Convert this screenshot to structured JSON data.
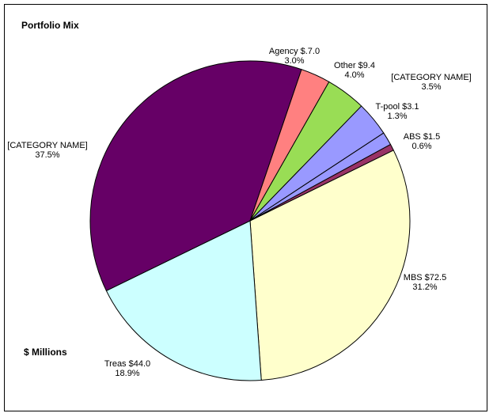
{
  "chart_data": {
    "type": "pie",
    "title": "Portfolio Mix",
    "subtitle": "$ Millions",
    "slices": [
      {
        "name": "MBS",
        "value": 72.5,
        "value_label": "$72.5",
        "percent_label": "31.2%",
        "color": "#FFFFCC"
      },
      {
        "name": "Treas",
        "value": 44.0,
        "value_label": "$44.0",
        "percent_label": "18.9%",
        "color": "#CCFFFF"
      },
      {
        "name": "[CATEGORY NAME]",
        "value": 87.1,
        "value_label": "",
        "percent_label": "37.5%",
        "color": "#660066"
      },
      {
        "name": "Agency",
        "value": 7.0,
        "value_label": "$.7.0",
        "percent_label": "3.0%",
        "color": "#FF8080"
      },
      {
        "name": "Other",
        "value": 9.4,
        "value_label": "$9.4",
        "percent_label": "4.0%",
        "color": "#99DD55"
      },
      {
        "name": "[CATEGORY NAME]",
        "value": 8.1,
        "value_label": "",
        "percent_label": "3.5%",
        "color": "#9999FF"
      },
      {
        "name": "T-pool",
        "value": 3.1,
        "value_label": "$3.1",
        "percent_label": "1.3%",
        "color": "#9999FF"
      },
      {
        "name": "ABS",
        "value": 1.5,
        "value_label": "$1.5",
        "percent_label": "0.6%",
        "color": "#993366"
      }
    ],
    "data_labels": [
      {
        "line1": "MBS $72.5",
        "line2": "31.2%"
      },
      {
        "line1": "Treas $44.0",
        "line2": "18.9%"
      },
      {
        "line1": "[CATEGORY NAME]",
        "line2": "37.5%"
      },
      {
        "line1": "Agency $.7.0",
        "line2": "3.0%"
      },
      {
        "line1": "Other $9.4",
        "line2": "4.0%"
      },
      {
        "line1": "[CATEGORY NAME]",
        "line2": "3.5%"
      },
      {
        "line1": "T-pool $3.1",
        "line2": "1.3%"
      },
      {
        "line1": "ABS $1.5",
        "line2": "0.6%"
      }
    ],
    "legend": "none"
  }
}
